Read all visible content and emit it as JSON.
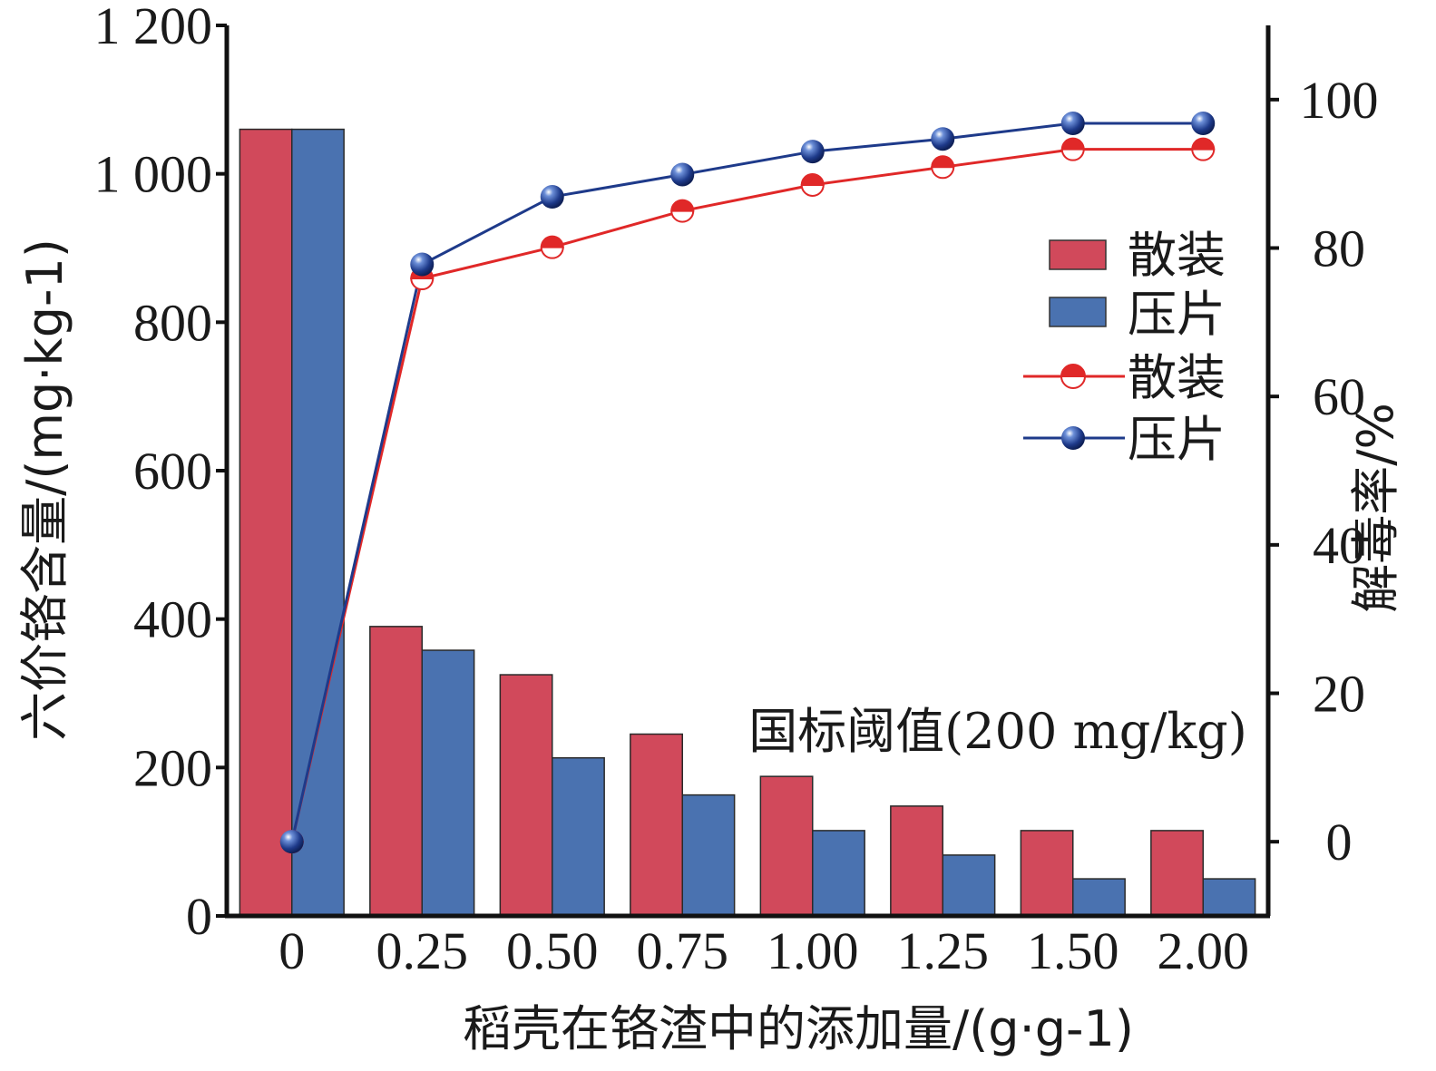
{
  "chart_data": {
    "type": "bar+line",
    "categories": [
      "0",
      "0.25",
      "0.50",
      "0.75",
      "1.00",
      "1.25",
      "1.50",
      "2.00"
    ],
    "xlabel": "稻壳在铬渣中的添加量/(g·g-1)",
    "ylabel_left": "六价铬含量/(mg·kg-1)",
    "ylabel_right": "解毒率/%",
    "ylim_left": [
      0,
      1200
    ],
    "ylim_right": [
      -10,
      110
    ],
    "left_ticks": [
      "0",
      "200",
      "400",
      "600",
      "800",
      "1 000",
      "1 200"
    ],
    "left_tick_values": [
      0,
      200,
      400,
      600,
      800,
      1000,
      1200
    ],
    "right_ticks": [
      "0",
      "20",
      "40",
      "60",
      "80",
      "100"
    ],
    "right_tick_values": [
      0,
      20,
      40,
      60,
      80,
      100
    ],
    "bar_series": [
      {
        "name": "散装",
        "color": "#d1495b",
        "values": [
          1060,
          390,
          325,
          245,
          188,
          148,
          115,
          115
        ]
      },
      {
        "name": "压片",
        "color": "#4a72b0",
        "values": [
          1060,
          358,
          213,
          163,
          115,
          82,
          50,
          50
        ]
      }
    ],
    "line_series": [
      {
        "name": "散装",
        "color": "#e02828",
        "values": [
          0,
          75.9,
          80.1,
          85.0,
          88.5,
          90.9,
          93.3,
          93.3
        ]
      },
      {
        "name": "压片",
        "color": "#1e3a8a",
        "values": [
          0,
          77.8,
          86.9,
          89.9,
          93.0,
          94.7,
          96.8,
          96.8
        ]
      }
    ],
    "annotation": "国标阈值(200 mg/kg)",
    "legend": {
      "position": "right",
      "items": [
        "散装",
        "压片",
        "散装",
        "压片"
      ]
    }
  }
}
